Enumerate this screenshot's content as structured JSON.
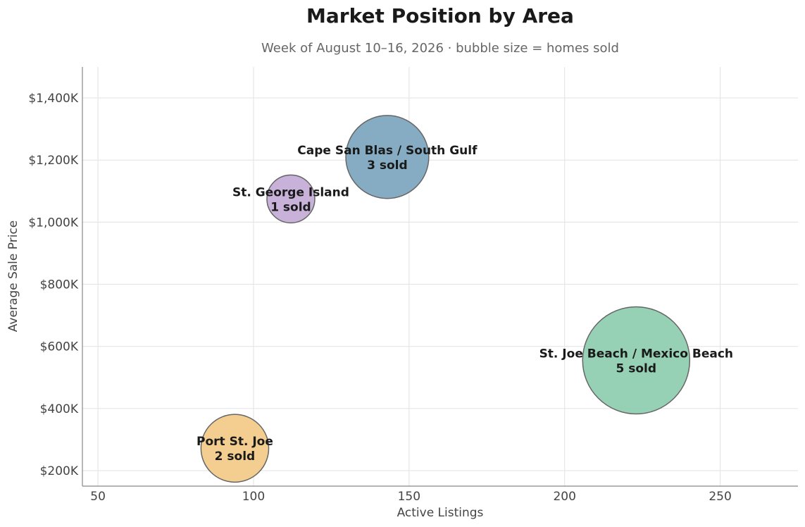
{
  "chart_data": {
    "type": "scatter",
    "title": "Market Position by Area",
    "subtitle": "Week of August 10–16, 2026  ·  bubble size = homes sold",
    "xlabel": "Active Listings",
    "ylabel": "Average Sale Price",
    "xlim": [
      45,
      275
    ],
    "ylim": [
      150,
      1500
    ],
    "x_ticks": [
      50,
      100,
      150,
      200,
      250
    ],
    "y_ticks": [
      200,
      400,
      600,
      800,
      1000,
      1200,
      1400
    ],
    "y_tick_labels": [
      "$200K",
      "$400K",
      "$600K",
      "$800K",
      "$1,000K",
      "$1,200K",
      "$1,400K"
    ],
    "grid": true,
    "series": [
      {
        "name": "Port St. Joe",
        "x": 94,
        "y": 272,
        "sold": 2,
        "sold_label": "2 sold",
        "color": "#f2cb8a"
      },
      {
        "name": "St. George Island",
        "x": 112,
        "y": 1075,
        "sold": 1,
        "sold_label": "1 sold",
        "color": "#c5aed8"
      },
      {
        "name": "Cape San Blas / South Gulf",
        "x": 143,
        "y": 1210,
        "sold": 3,
        "sold_label": "3 sold",
        "color": "#7fa8c1"
      },
      {
        "name": "St. Joe Beach / Mexico Beach",
        "x": 223,
        "y": 555,
        "sold": 5,
        "sold_label": "5 sold",
        "color": "#91cfb1"
      }
    ]
  }
}
